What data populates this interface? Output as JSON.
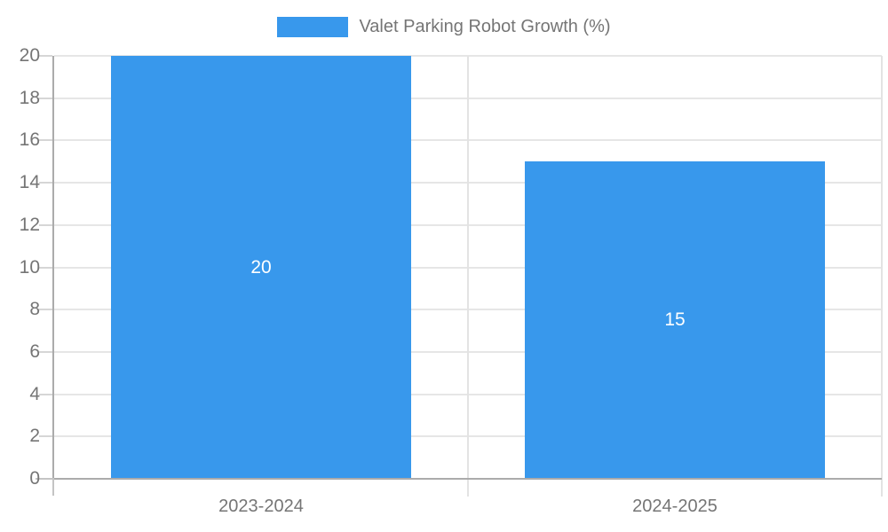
{
  "chart_data": {
    "type": "bar",
    "title": "Valet Parking Robot Growth (%)",
    "categories": [
      "2023-2024",
      "2024-2025"
    ],
    "series": [
      {
        "name": "Valet Parking Robot Growth (%)",
        "values": [
          20,
          15
        ]
      }
    ],
    "data_labels": [
      "20",
      "15"
    ],
    "xlabel": "",
    "ylabel": "",
    "ylim": [
      0,
      20
    ],
    "ytick_step": 2,
    "grid": true,
    "legend_position": "top-center",
    "colors": {
      "bar": "#3898ec",
      "bar_label_text": "#ffffff",
      "axis_text": "#757575",
      "axis_line": "#ababab",
      "grid_line": "#e6e6e6",
      "background": "#ffffff"
    }
  },
  "legend": {
    "label": "Valet Parking Robot Growth (%)"
  }
}
